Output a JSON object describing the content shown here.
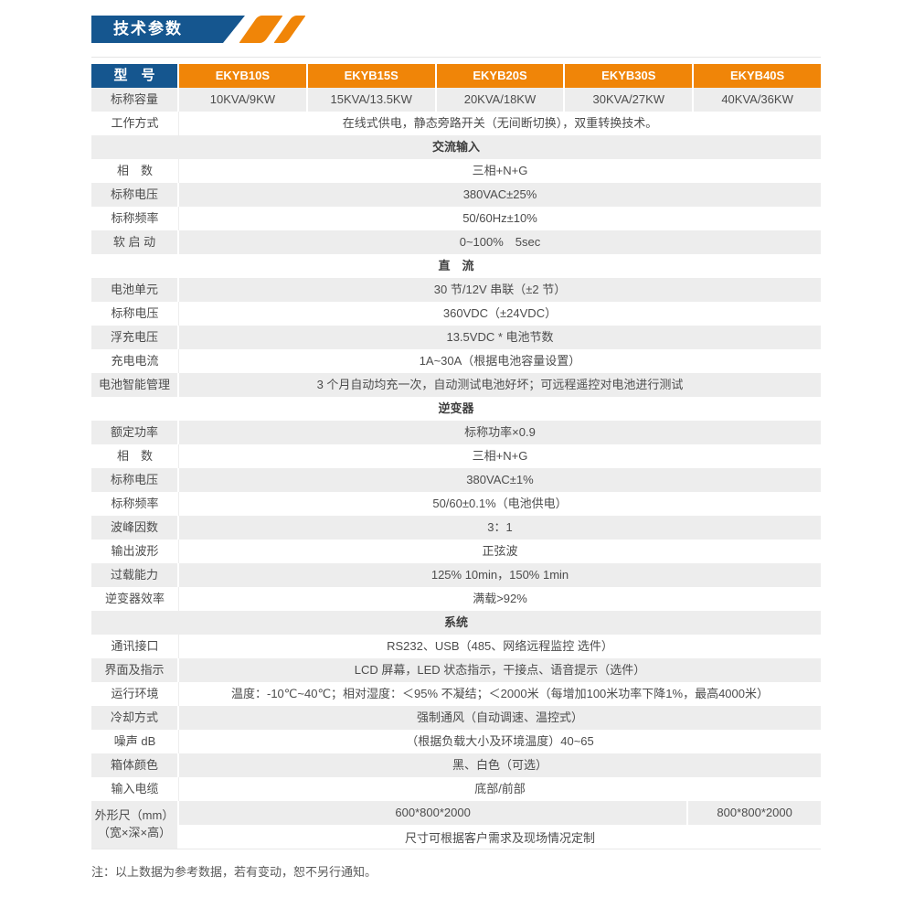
{
  "page": {
    "title": "技术参数",
    "note": "注：以上数据为参考数据，若有变动，恕不另行通知。"
  },
  "colors": {
    "header_blue": "#15568f",
    "header_orange": "#f08508",
    "row_gray": "#ededed",
    "text": "#4c4c4c"
  },
  "table": {
    "header": {
      "label": "型　号",
      "models": [
        "EKYB10S",
        "EKYB15S",
        "EKYB20S",
        "EKYB30S",
        "EKYB40S"
      ]
    },
    "rows": [
      {
        "type": "cells",
        "label": "标称容量",
        "values": [
          "10KVA/9KW",
          "15KVA/13.5KW",
          "20KVA/18KW",
          "30KVA/27KW",
          "40KVA/36KW"
        ]
      },
      {
        "type": "span",
        "label": "工作方式",
        "value": "在线式供电，静态旁路开关（无间断切换），双重转换技术。"
      },
      {
        "type": "section",
        "title": "交流输入"
      },
      {
        "type": "span",
        "label": "相　数",
        "value": "三相+N+G"
      },
      {
        "type": "span",
        "label": "标称电压",
        "value": "380VAC±25%"
      },
      {
        "type": "span",
        "label": "标称频率",
        "value": "50/60Hz±10%"
      },
      {
        "type": "span",
        "label": "软 启 动",
        "value": "0~100%　5sec"
      },
      {
        "type": "section",
        "title": "直　流"
      },
      {
        "type": "span",
        "label": "电池单元",
        "value": "30 节/12V 串联（±2 节）"
      },
      {
        "type": "span",
        "label": "标称电压",
        "value": "360VDC（±24VDC）"
      },
      {
        "type": "span",
        "label": "浮充电压",
        "value": "13.5VDC * 电池节数"
      },
      {
        "type": "span",
        "label": "充电电流",
        "value": "1A~30A（根据电池容量设置）"
      },
      {
        "type": "span",
        "label": "电池智能管理",
        "value": "3 个月自动均充一次，自动测试电池好坏；可远程遥控对电池进行测试"
      },
      {
        "type": "section",
        "title": "逆变器"
      },
      {
        "type": "span",
        "label": "额定功率",
        "value": "标称功率×0.9"
      },
      {
        "type": "span",
        "label": "相　数",
        "value": "三相+N+G"
      },
      {
        "type": "span",
        "label": "标称电压",
        "value": "380VAC±1%"
      },
      {
        "type": "span",
        "label": "标称频率",
        "value": "50/60±0.1%（电池供电）"
      },
      {
        "type": "span",
        "label": "波峰因数",
        "value": "3：1"
      },
      {
        "type": "span",
        "label": "输出波形",
        "value": "正弦波"
      },
      {
        "type": "span",
        "label": "过载能力",
        "value": "125% 10min，150% 1min"
      },
      {
        "type": "span",
        "label": "逆变器效率",
        "value": "满载>92%"
      },
      {
        "type": "section",
        "title": "系统"
      },
      {
        "type": "span",
        "label": "通讯接口",
        "value": "RS232、USB（485、网络远程监控 选件）"
      },
      {
        "type": "span",
        "label": "界面及指示",
        "value": "LCD 屏幕，LED 状态指示，干接点、语音提示（选件）"
      },
      {
        "type": "span",
        "label": "运行环境",
        "value": "温度：-10℃~40℃；相对湿度：＜95% 不凝结；＜2000米（每增加100米功率下降1%，最高4000米）"
      },
      {
        "type": "span",
        "label": "冷却方式",
        "value": "强制通风（自动调速、温控式）"
      },
      {
        "type": "span",
        "label": "噪声 dB",
        "value": "（根据负载大小及环境温度）40~65"
      },
      {
        "type": "span",
        "label": "箱体颜色",
        "value": "黑、白色（可选）"
      },
      {
        "type": "span",
        "label": "输入电缆",
        "value": "底部/前部"
      },
      {
        "type": "dim",
        "label_line1": "外形尺（mm）",
        "label_line2": "（宽×深×高）",
        "value_main": "600*800*2000",
        "value_right": "800*800*2000",
        "value_note": "尺寸可根据客户需求及现场情况定制"
      }
    ]
  }
}
